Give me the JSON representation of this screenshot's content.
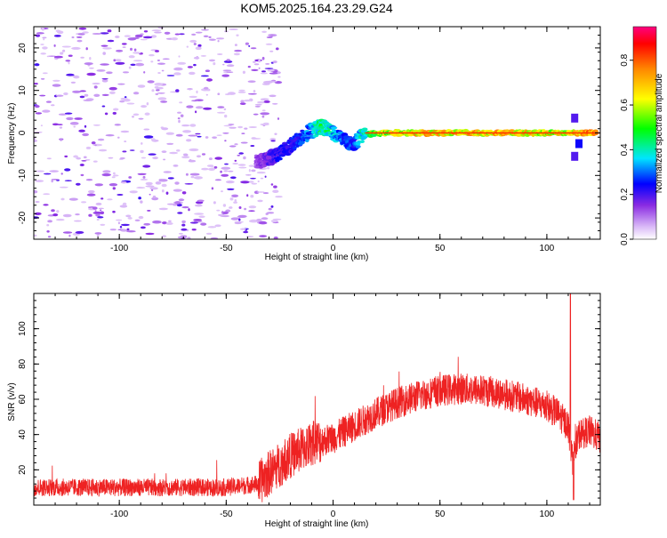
{
  "title": "KOM5.2025.164.23.29.G24",
  "colors": {
    "snr_line": "#ee2222",
    "axis": "#000000",
    "background": "#ffffff"
  },
  "chart_data": [
    {
      "type": "heatmap",
      "xlabel": "Height of straight line (km)",
      "ylabel": "Frequency (Hz)",
      "xlim": [
        -140,
        125
      ],
      "ylim": [
        -25,
        25
      ],
      "xticks": [
        "-100",
        "-50",
        "0",
        "50",
        "100"
      ],
      "yticks": [
        "-20",
        "-10",
        "0",
        "10",
        "20"
      ],
      "xtick_values": [
        -100,
        -50,
        0,
        50,
        100
      ],
      "ytick_values": [
        -20,
        -10,
        0,
        10,
        20
      ],
      "colorbar": {
        "label": "Normalized spectral amplitude",
        "range": [
          0,
          0.95
        ],
        "ticks": [
          "0.0",
          "0.2",
          "0.4",
          "0.6",
          "0.8"
        ],
        "tick_values": [
          0.0,
          0.2,
          0.4,
          0.6,
          0.8
        ]
      },
      "ridge": {
        "x": [
          -35,
          -30,
          -25,
          -20,
          -15,
          -10,
          -6,
          -2,
          2,
          6,
          10,
          14,
          20,
          40,
          80,
          110,
          125
        ],
        "y": [
          -7,
          -6,
          -5,
          -3,
          -1,
          0.5,
          1.5,
          0.8,
          -0.5,
          -2,
          -2.5,
          -0.5,
          0,
          0,
          0,
          0,
          0
        ],
        "amplitude": [
          0.15,
          0.2,
          0.25,
          0.25,
          0.3,
          0.35,
          0.5,
          0.45,
          0.35,
          0.3,
          0.3,
          0.45,
          0.6,
          0.75,
          0.75,
          0.7,
          0.9
        ]
      }
    },
    {
      "type": "line",
      "xlabel": "Height of straight line (km)",
      "ylabel": "SNR (v/v)",
      "xlim": [
        -140,
        125
      ],
      "ylim": [
        0,
        120
      ],
      "xticks": [
        "-100",
        "-50",
        "0",
        "50",
        "100"
      ],
      "yticks": [
        "20",
        "40",
        "60",
        "80",
        "100"
      ],
      "xtick_values": [
        -100,
        -50,
        0,
        50,
        100
      ],
      "ytick_values": [
        20,
        40,
        60,
        80,
        100
      ],
      "trend": {
        "x": [
          -140,
          -100,
          -50,
          -35,
          -30,
          -20,
          -10,
          0,
          10,
          20,
          30,
          40,
          50,
          60,
          70,
          80,
          90,
          100,
          105,
          110,
          112,
          115,
          120,
          125
        ],
        "y": [
          10,
          10,
          10,
          12,
          18,
          28,
          35,
          38,
          45,
          52,
          58,
          62,
          65,
          66,
          65,
          63,
          60,
          56,
          52,
          45,
          25,
          40,
          42,
          38
        ]
      }
    }
  ]
}
